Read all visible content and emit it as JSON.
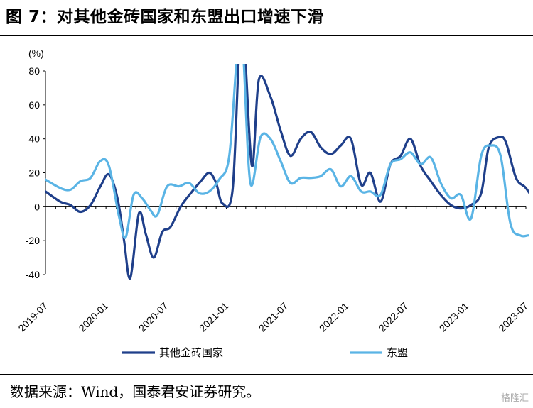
{
  "title": "图 7：对其他金砖国家和东盟出口增速下滑",
  "source": "数据来源：Wind，国泰君安证券研究。",
  "watermark": "格隆汇",
  "chart_data": {
    "type": "line",
    "unit": "(%)",
    "ylim": [
      -40,
      80
    ],
    "yticks": [
      -40,
      -20,
      0,
      20,
      40,
      60,
      80
    ],
    "xlim": [
      "2019-07",
      "2023-07"
    ],
    "xticks": [
      "2019-07",
      "2020-01",
      "2020-07",
      "2021-01",
      "2021-07",
      "2022-01",
      "2022-07",
      "2023-01",
      "2023-07"
    ],
    "grid": false,
    "legend": "bottom",
    "series": [
      {
        "name": "其他金砖国家",
        "color": "#1f3f8a",
        "points": [
          [
            "2019-07-01",
            9
          ],
          [
            "2019-08-15",
            3
          ],
          [
            "2019-09-15",
            1
          ],
          [
            "2019-10-15",
            -3
          ],
          [
            "2019-11-15",
            1
          ],
          [
            "2019-12-15",
            12
          ],
          [
            "2020-01-10",
            19
          ],
          [
            "2020-02-05",
            5
          ],
          [
            "2020-02-25",
            -20
          ],
          [
            "2020-03-15",
            -42
          ],
          [
            "2020-04-10",
            -4
          ],
          [
            "2020-05-01",
            -16
          ],
          [
            "2020-05-25",
            -30
          ],
          [
            "2020-06-20",
            -15
          ],
          [
            "2020-07-15",
            -12
          ],
          [
            "2020-08-15",
            0
          ],
          [
            "2020-09-15",
            8
          ],
          [
            "2020-10-15",
            15
          ],
          [
            "2020-11-10",
            20
          ],
          [
            "2020-12-01",
            14
          ],
          [
            "2020-12-20",
            2
          ],
          [
            "2021-01-20",
            10
          ],
          [
            "2021-02-10",
            95
          ],
          [
            "2021-02-25",
            95
          ],
          [
            "2021-03-20",
            24
          ],
          [
            "2021-04-10",
            75
          ],
          [
            "2021-05-15",
            65
          ],
          [
            "2021-06-15",
            45
          ],
          [
            "2021-07-15",
            30
          ],
          [
            "2021-08-15",
            40
          ],
          [
            "2021-09-15",
            44
          ],
          [
            "2021-10-15",
            35
          ],
          [
            "2021-11-15",
            31
          ],
          [
            "2021-12-15",
            36
          ],
          [
            "2022-01-15",
            40
          ],
          [
            "2022-02-15",
            13
          ],
          [
            "2022-03-15",
            20
          ],
          [
            "2022-04-15",
            3
          ],
          [
            "2022-05-15",
            25
          ],
          [
            "2022-06-15",
            30
          ],
          [
            "2022-07-15",
            40
          ],
          [
            "2022-08-15",
            24
          ],
          [
            "2022-09-15",
            15
          ],
          [
            "2022-10-15",
            7
          ],
          [
            "2022-11-15",
            1
          ],
          [
            "2022-12-15",
            -1
          ],
          [
            "2023-01-15",
            1
          ],
          [
            "2023-02-15",
            8
          ],
          [
            "2023-03-10",
            35
          ],
          [
            "2023-04-10",
            41
          ],
          [
            "2023-05-01",
            38
          ],
          [
            "2023-06-01",
            17
          ],
          [
            "2023-07-01",
            11
          ],
          [
            "2023-08-01",
            2
          ]
        ]
      },
      {
        "name": "东盟",
        "color": "#5ab4e5",
        "points": [
          [
            "2019-07-01",
            16
          ],
          [
            "2019-08-15",
            11
          ],
          [
            "2019-09-15",
            10
          ],
          [
            "2019-10-15",
            15
          ],
          [
            "2019-11-15",
            17
          ],
          [
            "2019-12-15",
            27
          ],
          [
            "2020-01-10",
            24
          ],
          [
            "2020-02-10",
            -6
          ],
          [
            "2020-03-01",
            -18
          ],
          [
            "2020-03-25",
            7
          ],
          [
            "2020-04-20",
            5
          ],
          [
            "2020-05-15",
            -2
          ],
          [
            "2020-06-05",
            -5
          ],
          [
            "2020-07-05",
            12
          ],
          [
            "2020-08-10",
            12
          ],
          [
            "2020-09-10",
            14
          ],
          [
            "2020-10-10",
            8
          ],
          [
            "2020-11-10",
            9
          ],
          [
            "2020-12-10",
            16
          ],
          [
            "2021-01-10",
            30
          ],
          [
            "2021-02-05",
            95
          ],
          [
            "2021-02-20",
            95
          ],
          [
            "2021-03-15",
            14
          ],
          [
            "2021-04-15",
            41
          ],
          [
            "2021-05-15",
            40
          ],
          [
            "2021-06-15",
            27
          ],
          [
            "2021-07-15",
            14
          ],
          [
            "2021-08-15",
            17
          ],
          [
            "2021-09-15",
            17
          ],
          [
            "2021-10-15",
            18
          ],
          [
            "2021-11-15",
            22
          ],
          [
            "2021-12-15",
            12
          ],
          [
            "2022-01-15",
            18
          ],
          [
            "2022-02-15",
            9
          ],
          [
            "2022-03-15",
            9
          ],
          [
            "2022-04-15",
            7
          ],
          [
            "2022-05-15",
            25
          ],
          [
            "2022-06-15",
            28
          ],
          [
            "2022-07-15",
            32
          ],
          [
            "2022-08-15",
            25
          ],
          [
            "2022-09-15",
            29
          ],
          [
            "2022-10-15",
            14
          ],
          [
            "2022-11-15",
            5
          ],
          [
            "2022-12-15",
            7
          ],
          [
            "2023-01-15",
            -7
          ],
          [
            "2023-02-15",
            30
          ],
          [
            "2023-03-15",
            36
          ],
          [
            "2023-04-15",
            30
          ],
          [
            "2023-05-15",
            -10
          ],
          [
            "2023-06-15",
            -17
          ],
          [
            "2023-07-15",
            -17
          ],
          [
            "2023-08-10",
            -21
          ]
        ]
      }
    ]
  }
}
